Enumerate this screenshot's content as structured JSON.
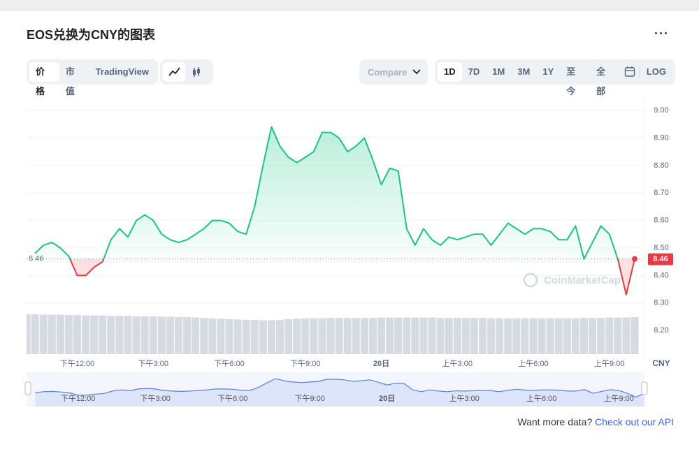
{
  "header": {
    "title": "EOS兑换为CNY的图表"
  },
  "toolbar": {
    "tabs": [
      "价格",
      "市值",
      "TradingView"
    ],
    "compare": "Compare",
    "ranges": [
      "1D",
      "7D",
      "1M",
      "3M",
      "1Y",
      "至今",
      "全部"
    ],
    "log": "LOG"
  },
  "chart_data": {
    "type": "line",
    "watermark": "CoinMarketCap",
    "y_label": "CNY",
    "categories": [
      null,
      null,
      null,
      null,
      null,
      null,
      "下午12:00",
      null,
      null,
      null,
      null,
      null,
      null,
      null,
      null,
      "下午3:00",
      null,
      null,
      null,
      null,
      null,
      null,
      null,
      null,
      "下午6:00",
      null,
      null,
      null,
      null,
      null,
      null,
      null,
      null,
      "下午9:00",
      null,
      null,
      null,
      null,
      null,
      null,
      null,
      null,
      "20日",
      null,
      null,
      null,
      null,
      null,
      null,
      null,
      null,
      "上午3:00",
      null,
      null,
      null,
      null,
      null,
      null,
      null,
      null,
      "上午6:00",
      null,
      null,
      null,
      null,
      null,
      null,
      null,
      null,
      "上午9:00",
      null,
      null,
      null
    ],
    "series": [
      {
        "name": "价格",
        "values": [
          null,
          8.48,
          8.51,
          8.52,
          8.5,
          8.47,
          8.4,
          8.4,
          8.43,
          8.45,
          8.53,
          8.57,
          8.54,
          8.6,
          8.62,
          8.6,
          8.55,
          8.53,
          8.52,
          8.53,
          8.55,
          8.57,
          8.6,
          8.6,
          8.59,
          8.56,
          8.55,
          8.65,
          8.8,
          8.94,
          8.87,
          8.83,
          8.81,
          8.83,
          8.85,
          8.92,
          8.92,
          8.9,
          8.85,
          8.87,
          8.9,
          8.82,
          8.73,
          8.79,
          8.78,
          8.57,
          8.51,
          8.57,
          8.53,
          8.51,
          8.54,
          8.53,
          8.54,
          8.55,
          8.55,
          8.51,
          8.55,
          8.59,
          8.57,
          8.55,
          8.57,
          8.57,
          8.56,
          8.53,
          8.53,
          8.58,
          8.46,
          8.52,
          8.58,
          8.55,
          8.46,
          8.33,
          8.46
        ]
      }
    ],
    "volume": [
      100,
      100,
      99,
      99,
      99,
      98,
      98,
      97,
      97,
      97,
      96,
      96,
      96,
      95,
      95,
      95,
      94,
      94,
      93,
      93,
      92,
      91,
      90,
      89,
      88,
      87,
      86,
      86,
      85,
      85,
      86,
      88,
      89,
      90,
      90,
      90,
      91,
      91,
      91,
      91,
      91,
      91,
      92,
      92,
      92,
      92,
      92,
      92,
      92,
      91,
      91,
      91,
      91,
      91,
      91,
      90,
      90,
      90,
      90,
      90,
      90,
      90,
      90,
      90,
      90,
      90,
      91,
      91,
      91,
      92,
      92,
      92,
      93
    ],
    "reference": 8.46,
    "up_color": "#16c784",
    "down_color": "#ea3943",
    "ylim": [
      8.114,
      9.046
    ],
    "yticks": [
      {
        "value": 9,
        "label": "9.00"
      },
      {
        "value": 8.9,
        "label": "8.90"
      },
      {
        "value": 8.8,
        "label": "8.80"
      },
      {
        "value": 8.7,
        "label": "8.70"
      },
      {
        "value": 8.6,
        "label": "8.60"
      },
      {
        "value": 8.5,
        "label": "8.50"
      },
      {
        "value": 8.4,
        "label": "8.40"
      },
      {
        "value": 8.3,
        "label": "8.30"
      },
      {
        "value": 8.2,
        "label": "8.20"
      }
    ],
    "grid": true
  },
  "footer": {
    "text": "Want more data?",
    "link": "Check out our API"
  }
}
